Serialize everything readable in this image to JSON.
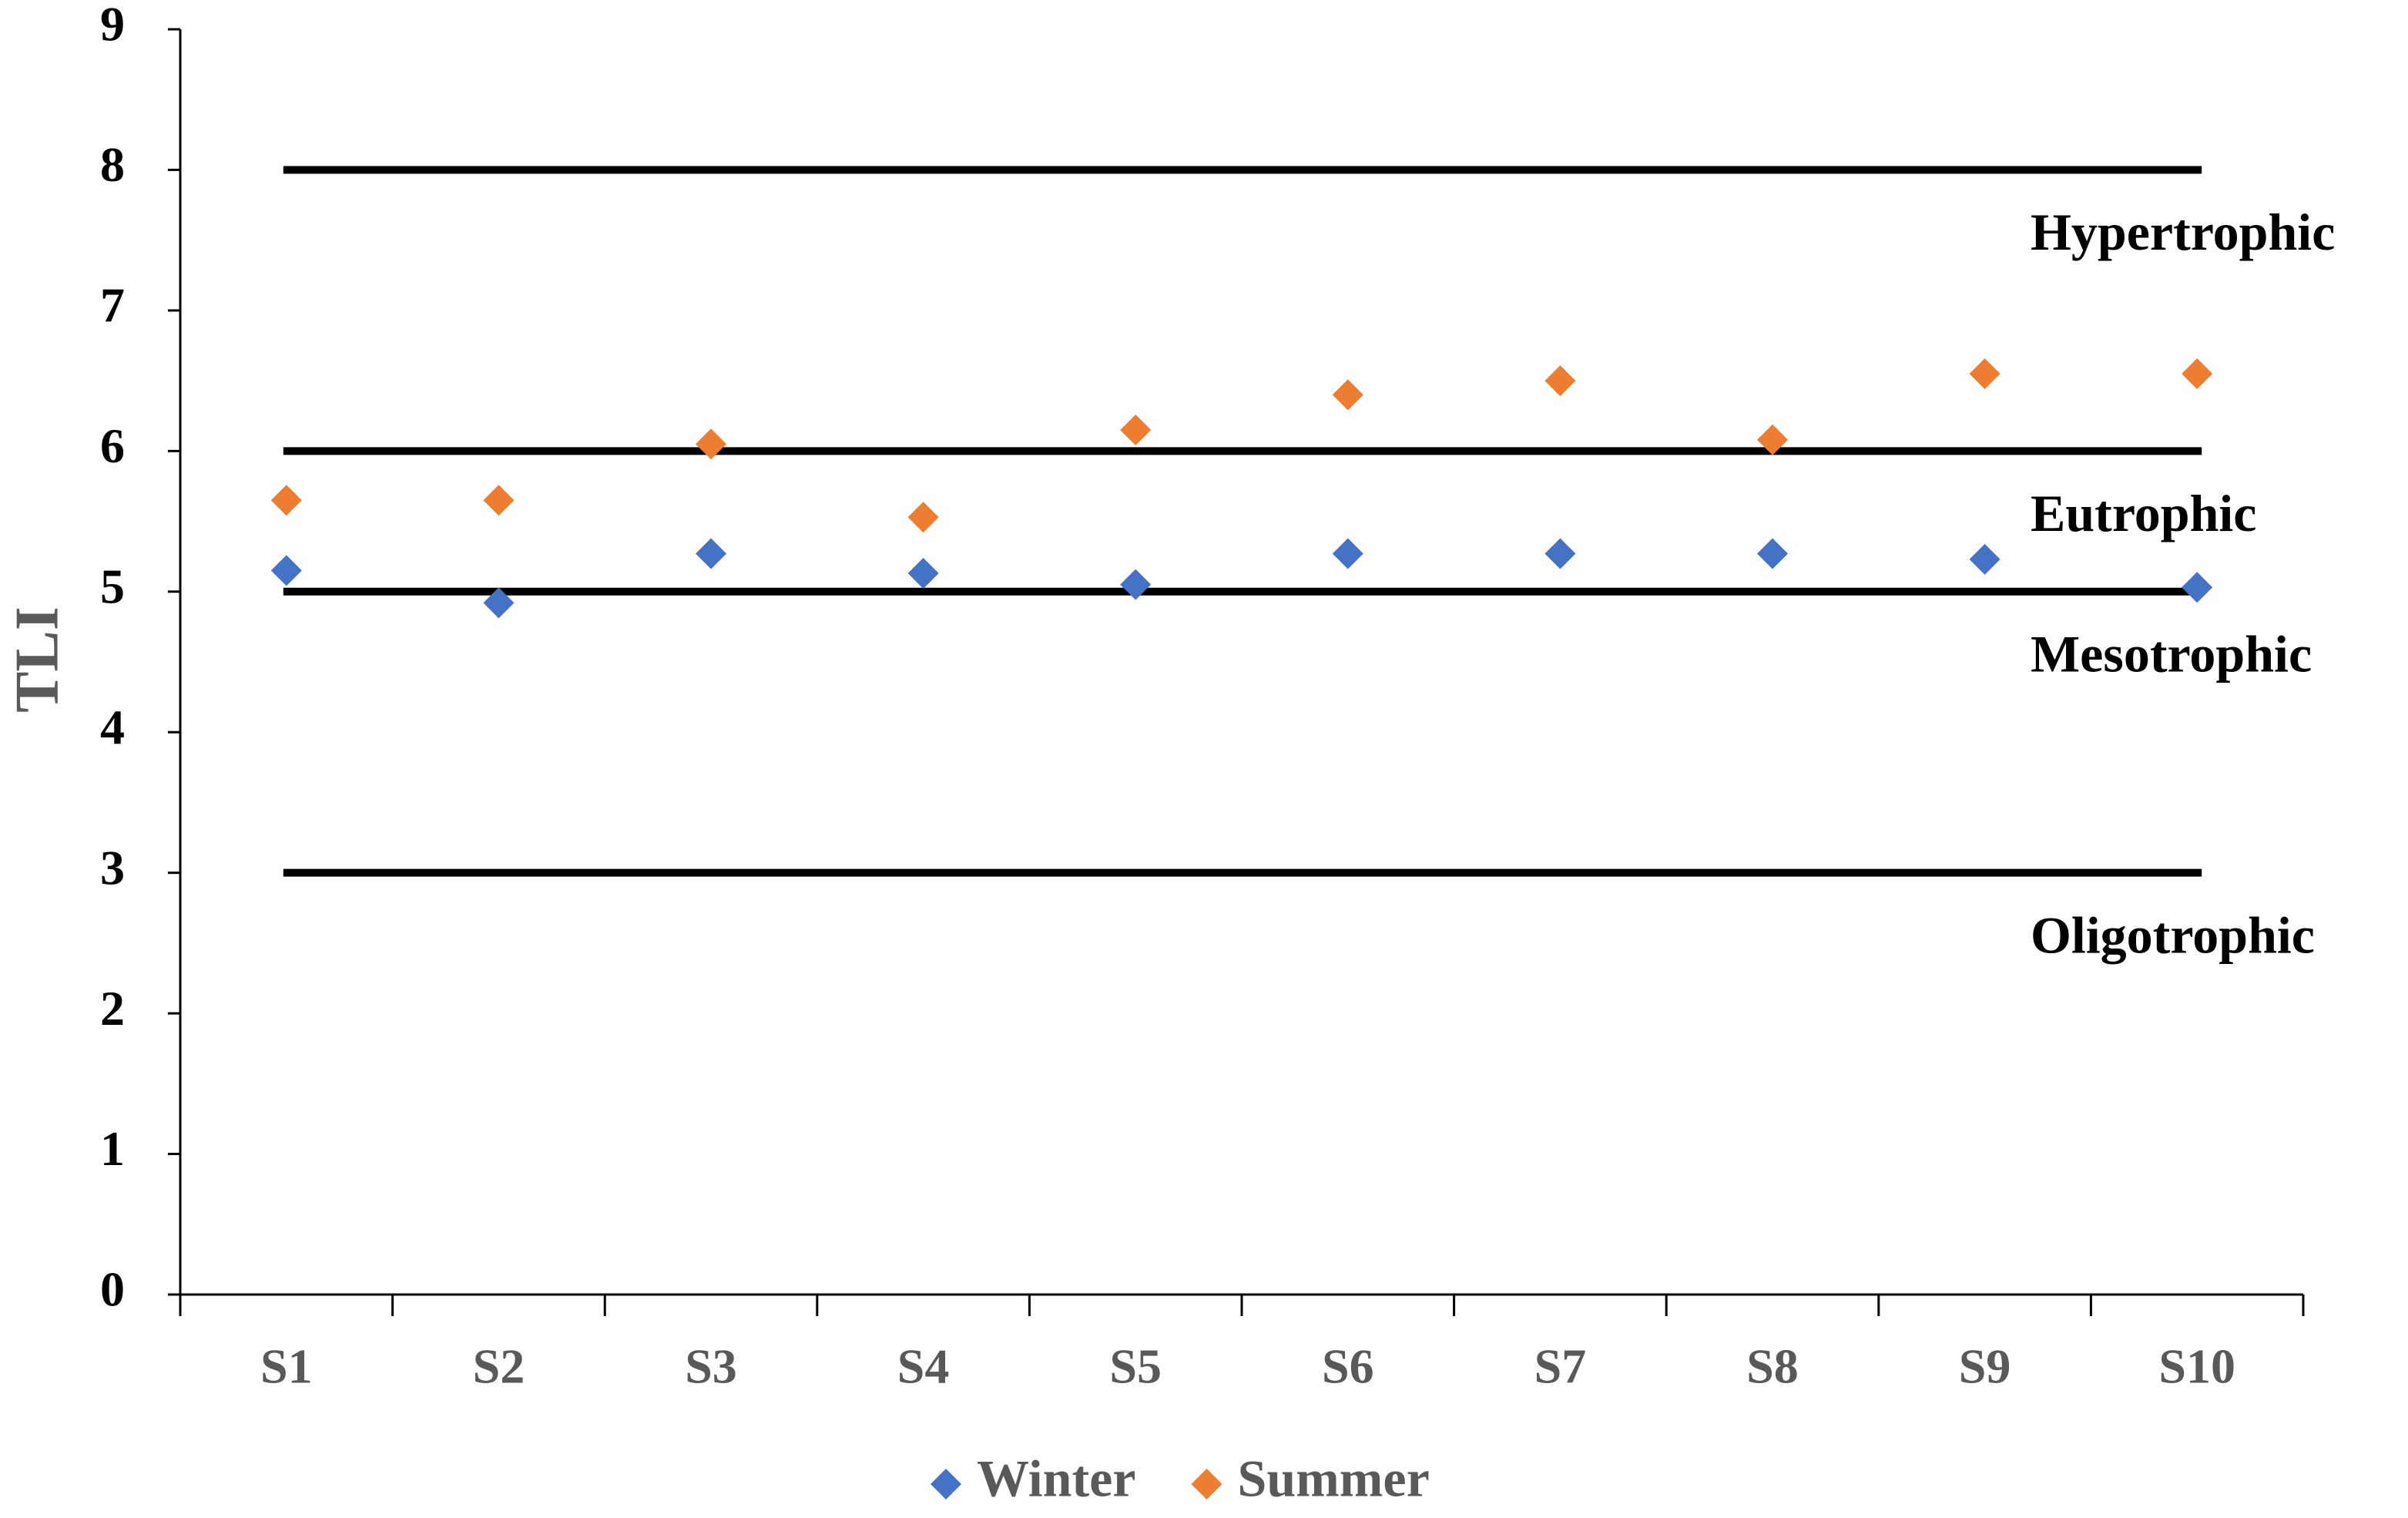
{
  "chart_data": {
    "type": "scatter",
    "y_label": "TLI",
    "categories": [
      "S1",
      "S2",
      "S3",
      "S4",
      "S5",
      "S6",
      "S7",
      "S8",
      "S9",
      "S10"
    ],
    "series": [
      {
        "name": "Winter",
        "color": "#4472c4",
        "values": [
          5.15,
          4.92,
          5.27,
          5.13,
          5.05,
          5.27,
          5.27,
          5.27,
          5.23,
          5.03
        ]
      },
      {
        "name": "Summer",
        "color": "#ed7d31",
        "values": [
          5.65,
          5.65,
          6.05,
          5.53,
          6.15,
          6.4,
          6.5,
          6.08,
          6.55,
          6.55
        ]
      }
    ],
    "reference_lines": [
      {
        "value": 8,
        "label": "Hypertrophic"
      },
      {
        "value": 6,
        "label": "Eutrophic"
      },
      {
        "value": 5,
        "label": "Mesotrophic"
      },
      {
        "value": 3,
        "label": "Oligotrophic"
      }
    ],
    "ylim": [
      0,
      9
    ],
    "yticks": [
      0,
      1,
      2,
      3,
      4,
      5,
      6,
      7,
      8,
      9
    ],
    "legend": "bottom"
  }
}
